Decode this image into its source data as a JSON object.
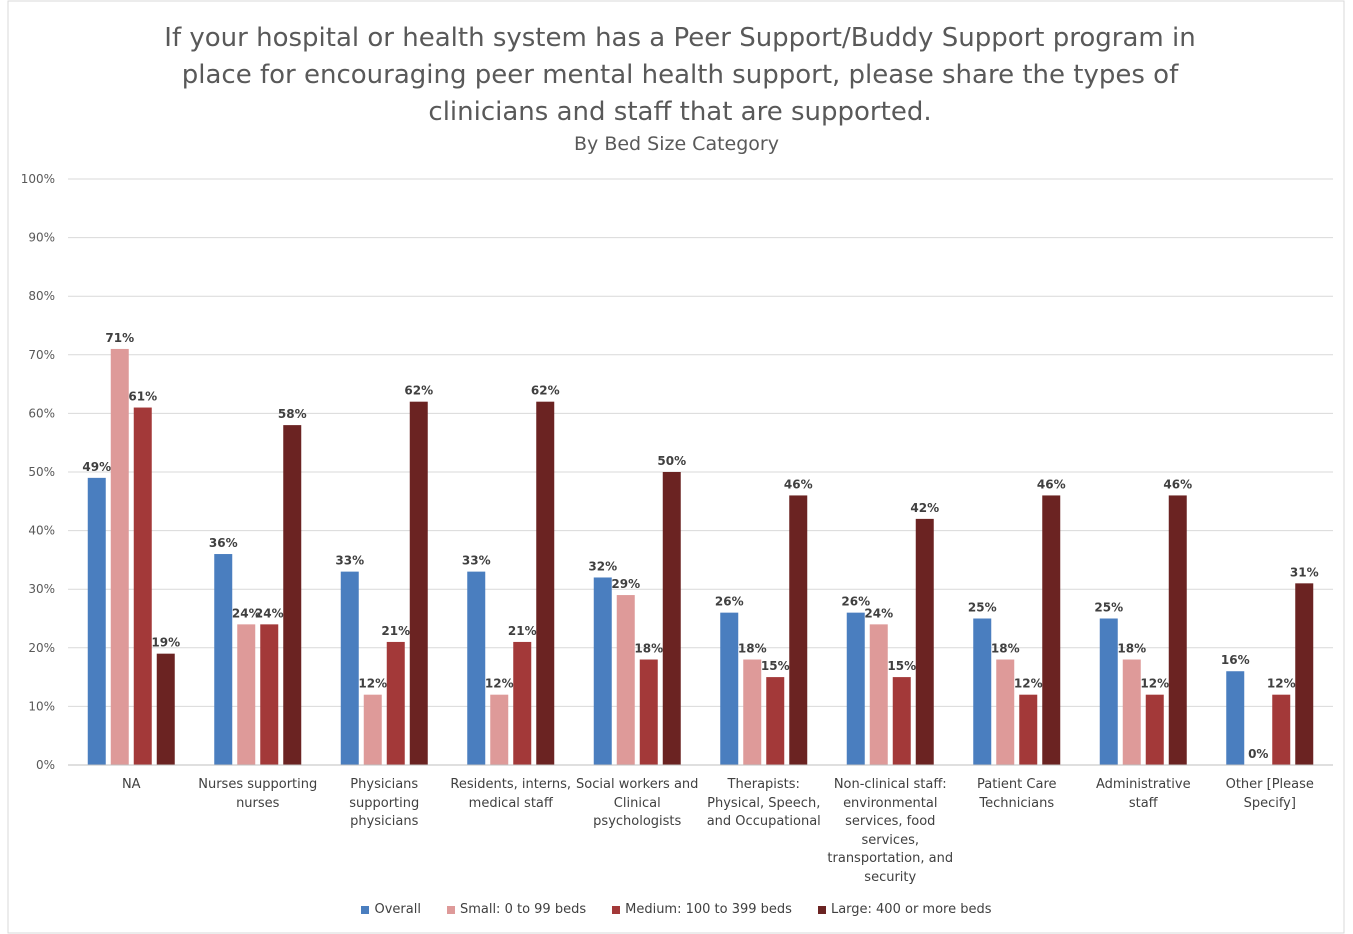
{
  "chart_data": {
    "type": "bar",
    "title": "If your hospital or health system has a Peer Support/Buddy Support program in place for encouraging peer mental health support, please share the types of clinicians and staff that are supported.",
    "subtitle": "By Bed Size Category",
    "categories": [
      "NA",
      "Nurses supporting nurses",
      "Physicians supporting physicians",
      "Residents, interns, medical staff",
      "Social workers and Clinical psychologists",
      "Therapists: Physical, Speech, and Occupational",
      "Non-clinical staff: environmental services, food services, transportation, and security",
      "Patient Care Technicians",
      "Administrative staff",
      "Other [Please Specify]"
    ],
    "series": [
      {
        "name": "Overall",
        "color": "#4a7ebf",
        "values": [
          49,
          36,
          33,
          33,
          32,
          26,
          26,
          25,
          25,
          16
        ],
        "value_labels": [
          "49%",
          "36%",
          "33%",
          "33%",
          "32%",
          "26%",
          "26%",
          "25%",
          "25%",
          "16%"
        ]
      },
      {
        "name": "Small: 0 to 99 beds",
        "color": "#de9a99",
        "values": [
          71,
          24,
          12,
          12,
          29,
          18,
          24,
          18,
          18,
          0
        ],
        "value_labels": [
          "71%",
          "24%",
          "12%",
          "12%",
          "29%",
          "18%",
          "24%",
          "18%",
          "18%",
          "0%"
        ]
      },
      {
        "name": "Medium: 100 to 399 beds",
        "color": "#a33939",
        "values": [
          61,
          24,
          21,
          21,
          18,
          15,
          15,
          12,
          12,
          12
        ],
        "value_labels": [
          "61%",
          "24%",
          "21%",
          "21%",
          "18%",
          "15%",
          "15%",
          "12%",
          "12%",
          "12%"
        ]
      },
      {
        "name": "Large: 400 or more beds",
        "color": "#6b2322",
        "values": [
          19,
          58,
          62,
          62,
          50,
          46,
          42,
          46,
          46,
          31
        ],
        "value_labels": [
          "19%",
          "58%",
          "62%",
          "62%",
          "50%",
          "46%",
          "42%",
          "46%",
          "46%",
          "31%"
        ]
      }
    ],
    "ylim": [
      0,
      100
    ],
    "yticks": [
      {
        "value": 0,
        "label": "0%"
      },
      {
        "value": 10,
        "label": "10%"
      },
      {
        "value": 20,
        "label": "20%"
      },
      {
        "value": 30,
        "label": "30%"
      },
      {
        "value": 40,
        "label": "40%"
      },
      {
        "value": 50,
        "label": "50%"
      },
      {
        "value": 60,
        "label": "60%"
      },
      {
        "value": 70,
        "label": "70%"
      },
      {
        "value": 80,
        "label": "80%"
      },
      {
        "value": 90,
        "label": "90%"
      },
      {
        "value": 100,
        "label": "100%"
      }
    ],
    "grid": true,
    "legend": "bottom"
  }
}
